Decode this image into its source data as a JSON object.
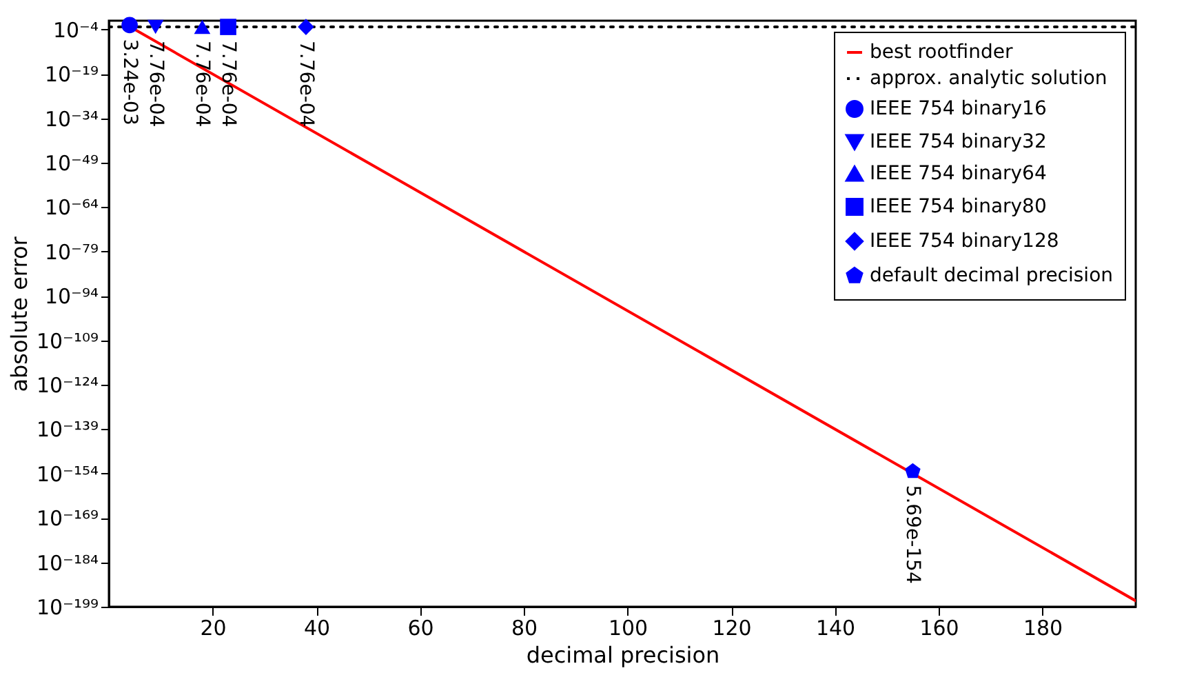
{
  "chart_data": {
    "type": "scatter",
    "xlabel": "decimal precision",
    "ylabel": "absolute error",
    "log": "y",
    "grid": false,
    "legend": "top right",
    "xlim": [
      0,
      198
    ],
    "xticks": [
      20,
      40,
      60,
      80,
      100,
      120,
      140,
      160,
      180
    ],
    "ylim": [
      1e-199,
      0.1
    ],
    "yticks": [
      {
        "value": 0.0001,
        "label": "10⁻⁴"
      },
      {
        "value": 1e-19,
        "label": "10⁻¹⁹"
      },
      {
        "value": 1e-34,
        "label": "10⁻³⁴"
      },
      {
        "value": 1e-49,
        "label": "10⁻⁴⁹"
      },
      {
        "value": 1e-64,
        "label": "10⁻⁶⁴"
      },
      {
        "value": 1e-79,
        "label": "10⁻⁷⁹"
      },
      {
        "value": 1e-94,
        "label": "10⁻⁹⁴"
      },
      {
        "value": 1e-109,
        "label": "10⁻¹⁰⁹"
      },
      {
        "value": 1e-124,
        "label": "10⁻¹²⁴"
      },
      {
        "value": 1e-139,
        "label": "10⁻¹³⁹"
      },
      {
        "value": 1e-154,
        "label": "10⁻¹⁵⁴"
      },
      {
        "value": 1e-169,
        "label": "10⁻¹⁶⁹"
      },
      {
        "value": 1e-184,
        "label": "10⁻¹⁸⁴"
      },
      {
        "value": 1e-199,
        "label": "10⁻¹⁹⁹"
      }
    ],
    "series": [
      {
        "name": "best rootfinder",
        "type": "line",
        "color": "#ff0000",
        "line_style": "solid",
        "marker": "none",
        "x": [
          4,
          198
        ],
        "values": [
          0.001,
          1e-197
        ]
      },
      {
        "name": "approx. analytic solution",
        "type": "line",
        "color": "#000000",
        "line_style": "dotted",
        "marker": "none",
        "x": [
          0,
          198
        ],
        "values": [
          0.0008,
          0.0008
        ]
      },
      {
        "name": "IEEE 754 binary16",
        "color": "#0000ff",
        "marker": "circle",
        "x": [
          4
        ],
        "values": [
          0.00324
        ],
        "value_labels": [
          "3.24e-03"
        ]
      },
      {
        "name": "IEEE 754 binary32",
        "color": "#0000ff",
        "marker": "triangle-down",
        "x": [
          9
        ],
        "values": [
          0.000776
        ],
        "value_labels": [
          "7.76e-04"
        ]
      },
      {
        "name": "IEEE 754 binary64",
        "color": "#0000ff",
        "marker": "triangle",
        "x": [
          18
        ],
        "values": [
          0.000776
        ],
        "value_labels": [
          "7.76e-04"
        ]
      },
      {
        "name": "IEEE 754 binary80",
        "color": "#0000ff",
        "marker": "square",
        "x": [
          23
        ],
        "values": [
          0.000776
        ],
        "value_labels": [
          "7.76e-04"
        ]
      },
      {
        "name": "IEEE 754 binary128",
        "color": "#0000ff",
        "marker": "diamond",
        "x": [
          38
        ],
        "values": [
          0.000776
        ],
        "value_labels": [
          "7.76e-04"
        ]
      },
      {
        "name": "default decimal precision",
        "color": "#0000ff",
        "x": [
          155
        ],
        "values": [
          5.69e-154
        ],
        "value_labels": [
          "5.69e-154"
        ]
      }
    ]
  }
}
